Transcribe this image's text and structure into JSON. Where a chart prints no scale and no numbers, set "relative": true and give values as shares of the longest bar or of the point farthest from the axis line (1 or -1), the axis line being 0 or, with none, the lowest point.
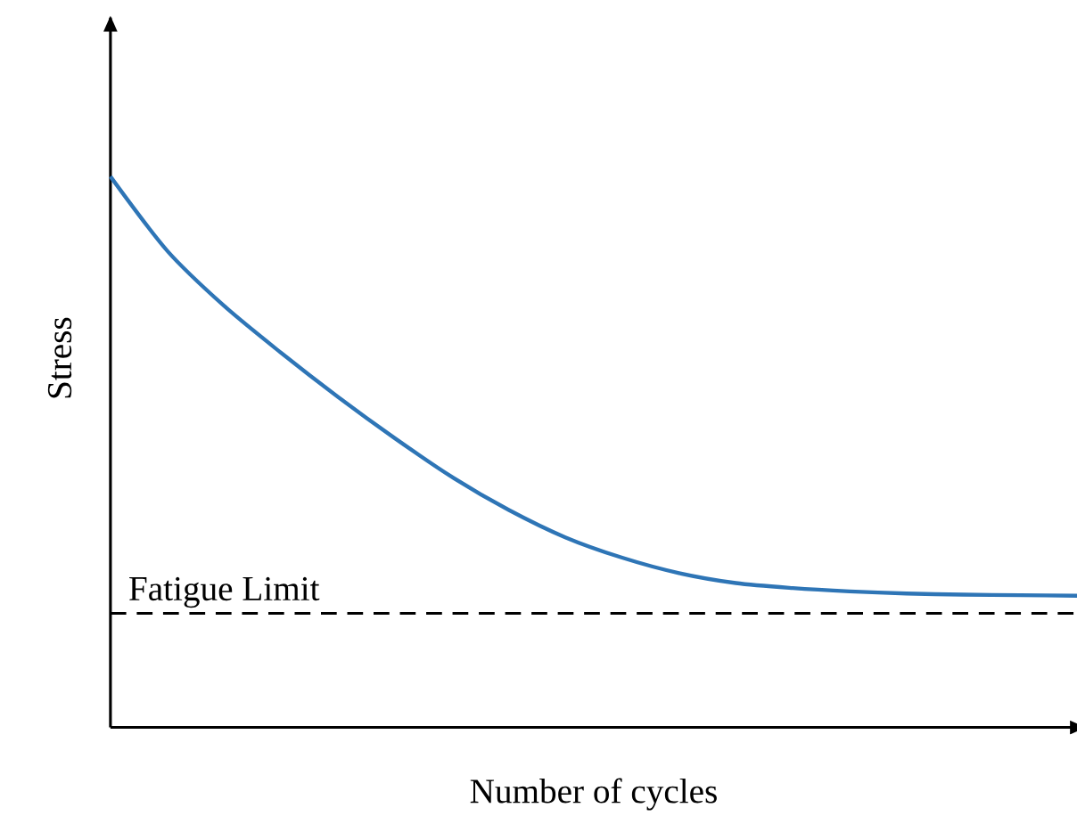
{
  "chart_data": {
    "type": "line",
    "relative": true,
    "xlabel": "Number of cycles",
    "ylabel": "Stress",
    "categories": [
      null,
      null,
      null,
      null,
      null,
      null,
      null,
      null,
      null,
      null,
      null,
      null,
      null,
      null,
      null,
      null,
      null,
      null
    ],
    "series": [
      {
        "color": "#2e75b6",
        "values": [
          1.0,
          0.865,
          0.765,
          0.68,
          0.6,
          0.525,
          0.455,
          0.395,
          0.345,
          0.308,
          0.28,
          0.262,
          0.253,
          0.247,
          0.243,
          0.241,
          0.24,
          0.239
        ]
      }
    ],
    "ref_lines": [
      {
        "axis": "y",
        "value": 0.207,
        "label": "Fatigue Limit",
        "color": "#000000",
        "line_style": "dashed"
      }
    ],
    "marker": "none",
    "line_style": "solid"
  }
}
